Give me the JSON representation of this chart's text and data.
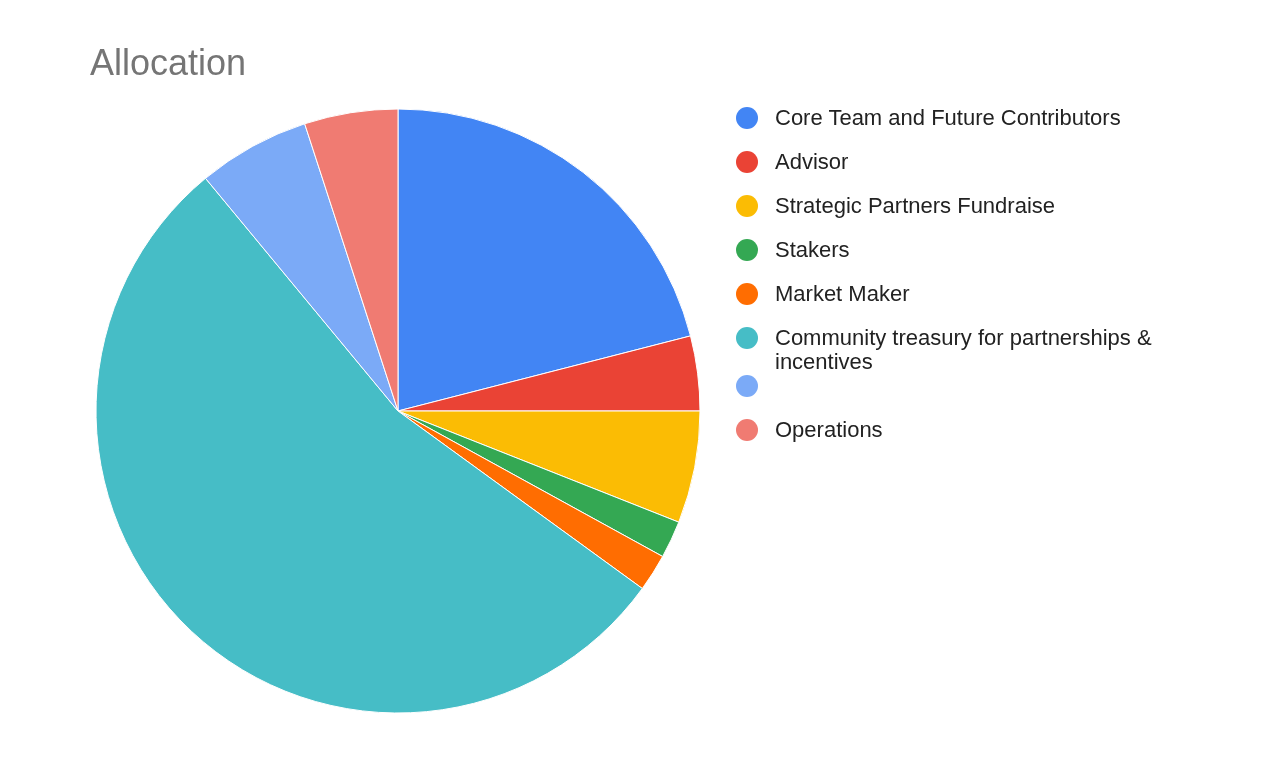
{
  "chart_data": {
    "type": "pie",
    "title": "Allocation",
    "categories": [
      "Core Team and Future Contributors",
      "Advisor",
      "Strategic Partners Fundraise",
      "Stakers",
      "Market Maker",
      "Community treasury for partnerships & incentives",
      null,
      "Operations"
    ],
    "values": [
      21,
      4,
      6,
      2,
      2,
      54,
      6,
      5
    ],
    "colors": [
      "#4285f4",
      "#ea4335",
      "#fbbc04",
      "#34a853",
      "#ff6d01",
      "#46bdc6",
      "#7baaf7",
      "#f07b72"
    ],
    "legend": "right"
  }
}
